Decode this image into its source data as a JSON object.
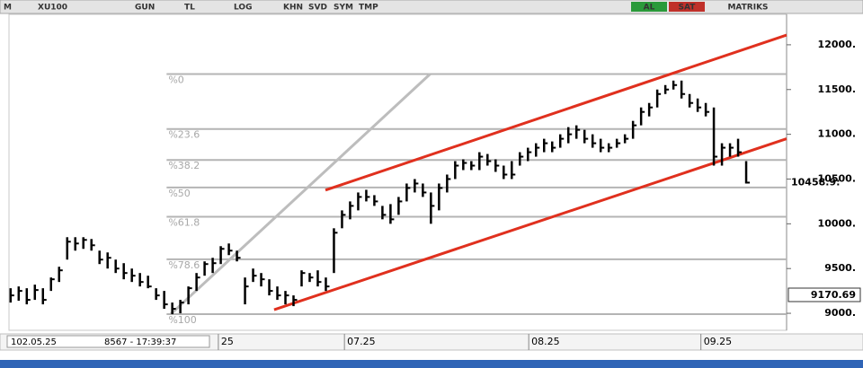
{
  "toolbar": {
    "logo": "M",
    "symbol": "XU100",
    "buttons": [
      "GUN",
      "TL",
      "LOG",
      "KHN",
      "SVD",
      "SYM",
      "TMP"
    ],
    "buy": "AL",
    "sell": "SAT",
    "brand": "MATRIKS"
  },
  "status": {
    "date": "102.05.25",
    "info": "8567 - 17:39:37"
  },
  "chart_data": {
    "type": "ohlc",
    "x": [
      0,
      1,
      2,
      3,
      4,
      5,
      6,
      7,
      8,
      9,
      10,
      11,
      12,
      13,
      14,
      15,
      16,
      17,
      18,
      19,
      20,
      21,
      22,
      23,
      24,
      25,
      26,
      27,
      28,
      29,
      30,
      31,
      32,
      33,
      34,
      35,
      36,
      37,
      38,
      39,
      40,
      41,
      42,
      43,
      44,
      45,
      46,
      47,
      48,
      49,
      50,
      51,
      52,
      53,
      54,
      55,
      56,
      57,
      58,
      59,
      60,
      61,
      62,
      63,
      64,
      65,
      66,
      67,
      68,
      69,
      70,
      71,
      72,
      73,
      74,
      75,
      76,
      77,
      78,
      79,
      80,
      81,
      82,
      83,
      84,
      85,
      86,
      87,
      88,
      89,
      90,
      91
    ],
    "high": [
      9280,
      9300,
      9280,
      9320,
      9280,
      9400,
      9520,
      9850,
      9850,
      9850,
      9830,
      9700,
      9680,
      9600,
      9560,
      9500,
      9450,
      9420,
      9280,
      9250,
      9120,
      9150,
      9300,
      9450,
      9580,
      9620,
      9750,
      9780,
      9700,
      9400,
      9500,
      9450,
      9380,
      9300,
      9250,
      9200,
      9480,
      9450,
      9480,
      9400,
      9950,
      10150,
      10250,
      10350,
      10380,
      10320,
      10200,
      10220,
      10300,
      10450,
      10500,
      10450,
      10350,
      10450,
      10550,
      10700,
      10720,
      10700,
      10800,
      10780,
      10720,
      10650,
      10700,
      10800,
      10850,
      10900,
      10950,
      10920,
      11000,
      11080,
      11100,
      11050,
      11000,
      10950,
      10900,
      10950,
      11000,
      11150,
      11300,
      11350,
      11500,
      11550,
      11600,
      11600,
      11450,
      11400,
      11350,
      11300,
      10900,
      10900,
      10950,
      10700
    ],
    "low": [
      9120,
      9140,
      9100,
      9150,
      9100,
      9250,
      9350,
      9600,
      9700,
      9720,
      9700,
      9550,
      9500,
      9450,
      9380,
      9350,
      9300,
      9280,
      9150,
      9050,
      8990,
      9000,
      9100,
      9250,
      9420,
      9450,
      9550,
      9650,
      9580,
      9100,
      9350,
      9300,
      9200,
      9150,
      9100,
      9080,
      9300,
      9350,
      9300,
      9250,
      9450,
      9950,
      10050,
      10150,
      10250,
      10200,
      10050,
      10000,
      10100,
      10250,
      10350,
      10300,
      10000,
      10150,
      10350,
      10500,
      10600,
      10600,
      10600,
      10650,
      10580,
      10500,
      10500,
      10650,
      10700,
      10750,
      10800,
      10800,
      10850,
      10900,
      10950,
      10900,
      10850,
      10800,
      10800,
      10850,
      10900,
      10950,
      11100,
      11200,
      11300,
      11450,
      11500,
      11400,
      11300,
      11250,
      11200,
      10650,
      10650,
      10750,
      10750,
      10450
    ],
    "close": [
      9200,
      9250,
      9150,
      9260,
      9150,
      9380,
      9480,
      9800,
      9780,
      9820,
      9760,
      9600,
      9620,
      9500,
      9450,
      9420,
      9350,
      9300,
      9200,
      9100,
      9050,
      9120,
      9280,
      9400,
      9550,
      9560,
      9720,
      9700,
      9620,
      9300,
      9420,
      9380,
      9250,
      9200,
      9200,
      9150,
      9450,
      9400,
      9350,
      9300,
      9900,
      10100,
      10200,
      10300,
      10300,
      10250,
      10100,
      10050,
      10250,
      10400,
      10450,
      10350,
      10200,
      10400,
      10500,
      10650,
      10680,
      10650,
      10750,
      10700,
      10650,
      10550,
      10550,
      10750,
      10800,
      10850,
      10900,
      10850,
      10950,
      11000,
      11050,
      10950,
      10900,
      10850,
      10850,
      10900,
      10950,
      11100,
      11250,
      11300,
      11450,
      11500,
      11550,
      11450,
      11350,
      11300,
      11250,
      10750,
      10850,
      10850,
      10800,
      10460
    ],
    "color": "#000000",
    "xlim": [
      -0.2,
      96
    ],
    "ylim": [
      8810,
      12340
    ],
    "xticks": [
      {
        "value": 25.7,
        "label": "25"
      },
      {
        "value": 41.3,
        "label": "07.25"
      },
      {
        "value": 64.1,
        "label": "08.25"
      },
      {
        "value": 85.4,
        "label": "09.25"
      }
    ],
    "yticks": [
      {
        "value": 9000,
        "label": "9000."
      },
      {
        "value": 9500,
        "label": "9500."
      },
      {
        "value": 10000,
        "label": "10000."
      },
      {
        "value": 10500,
        "label": "10500."
      },
      {
        "value": 11000,
        "label": "11000."
      },
      {
        "value": 11500,
        "label": "11500."
      },
      {
        "value": 12000,
        "label": "12000."
      }
    ],
    "fib_levels": [
      {
        "value": 11673,
        "label": "%0"
      },
      {
        "value": 11059,
        "label": "%23.6"
      },
      {
        "value": 10713,
        "label": "%38.2"
      },
      {
        "value": 10406,
        "label": "%50"
      },
      {
        "value": 10079,
        "label": "%61.8"
      },
      {
        "value": 9604,
        "label": "%78.6"
      },
      {
        "value": 8990,
        "label": "%100"
      }
    ],
    "fib_x": [
      19.3,
      96
    ],
    "fib_color": "#b4b4b4",
    "trend_lines": [
      {
        "color": "#e0301e",
        "x": [
          38.95,
          96
        ],
        "y": [
          10376,
          12109
        ]
      },
      {
        "color": "#e0301e",
        "x": [
          32.6,
          96
        ],
        "y": [
          9040,
          10950
        ]
      },
      {
        "color": "#bdbdbd",
        "x": [
          19.8,
          51.9
        ],
        "y": [
          8990,
          11673
        ]
      }
    ],
    "last_price_label": "10458.9:",
    "cursor_label": "9170.69"
  }
}
